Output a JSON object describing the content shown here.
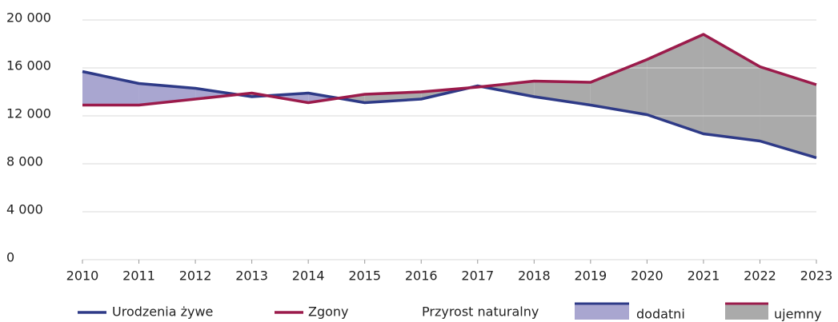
{
  "chart_data": {
    "type": "line",
    "x": [
      2010,
      2011,
      2012,
      2013,
      2014,
      2015,
      2016,
      2017,
      2018,
      2019,
      2020,
      2021,
      2022,
      2023
    ],
    "xlim": [
      2010,
      2023
    ],
    "xticks": [
      2010,
      2011,
      2012,
      2013,
      2014,
      2015,
      2016,
      2017,
      2018,
      2019,
      2020,
      2021,
      2022,
      2023
    ],
    "ylim": [
      0,
      20000
    ],
    "yticks": [
      0,
      {
        "value": 4000,
        "label": "4 000"
      },
      {
        "value": 8000,
        "label": "8 000"
      },
      {
        "value": 12000,
        "label": "12 000"
      },
      {
        "value": 16000,
        "label": "16 000"
      },
      {
        "value": 20000,
        "label": "20 000"
      }
    ],
    "grid": true,
    "series": [
      {
        "name": "Urodzenia żywe",
        "color": "#2e3a87",
        "values": [
          15700,
          14700,
          14300,
          13600,
          13900,
          13100,
          13400,
          14500,
          13600,
          12900,
          12100,
          10500,
          9900,
          8500
        ]
      },
      {
        "name": "Zgony",
        "color": "#9b1b4b",
        "values": [
          12900,
          12900,
          13400,
          13900,
          13100,
          13800,
          14000,
          14400,
          14900,
          14800,
          16700,
          18800,
          16100,
          14600
        ]
      }
    ],
    "fill_legend": {
      "title": "Przyrost naturalny",
      "positive": {
        "label": "dodatni",
        "color": "#a9a6d0"
      },
      "negative": {
        "label": "ujemny",
        "color": "#aaaaaa"
      }
    }
  }
}
